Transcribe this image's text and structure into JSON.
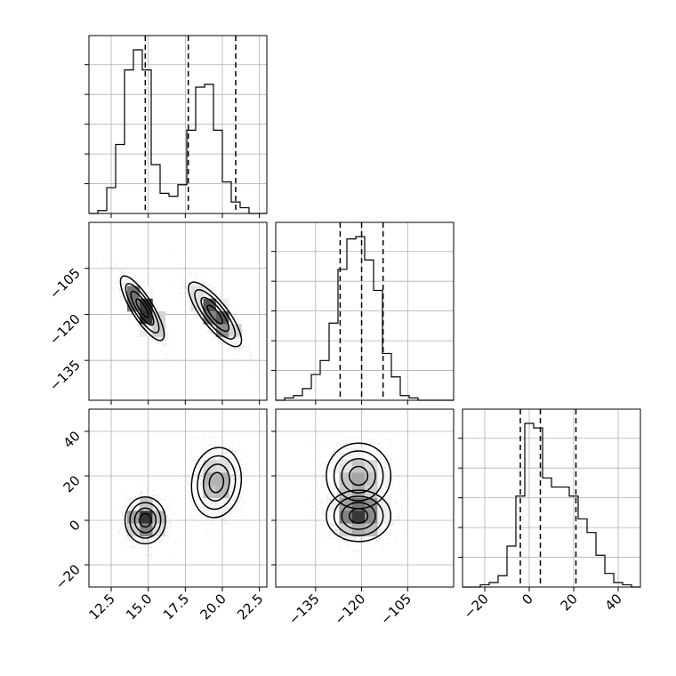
{
  "chart_data": {
    "type": "corner",
    "grid": true,
    "params": [
      {
        "range": [
          11.0,
          23.0
        ],
        "ticks": [
          12.5,
          15.0,
          17.5,
          20.0,
          22.5
        ],
        "tick_labels": [
          "12.5",
          "15.0",
          "17.5",
          "20.0",
          "22.5"
        ],
        "quantiles": [
          14.8,
          17.7,
          20.9
        ]
      },
      {
        "range": [
          -148,
          -90
        ],
        "ticks": [
          -135,
          -120,
          -105
        ],
        "tick_labels": [
          "−135",
          "−120",
          "−105"
        ],
        "quantiles": [
          -127,
          -120,
          -113
        ]
      },
      {
        "range": [
          -30,
          50
        ],
        "ticks": [
          -20,
          0,
          20,
          40
        ],
        "tick_labels": [
          "−20",
          "0",
          "20",
          "40"
        ],
        "quantiles": [
          -4,
          5,
          21
        ]
      }
    ],
    "histograms": [
      {
        "param": 0,
        "bin_edges": [
          11.0,
          11.6,
          12.2,
          12.8,
          13.4,
          14.0,
          14.6,
          15.2,
          15.8,
          16.4,
          17.0,
          17.6,
          18.2,
          18.8,
          19.4,
          20.0,
          20.6,
          21.2,
          21.8,
          22.4,
          23.0
        ],
        "counts": [
          0,
          1,
          9,
          24,
          50,
          57,
          50,
          17,
          7,
          6,
          10,
          29,
          44,
          45,
          29,
          11,
          4,
          2,
          0,
          0
        ]
      },
      {
        "param": 1,
        "bin_edges": [
          -148,
          -145.1,
          -142.2,
          -139.3,
          -136.4,
          -133.5,
          -130.6,
          -127.7,
          -124.8,
          -121.9,
          -119.0,
          -116.1,
          -113.2,
          -110.3,
          -107.4,
          -104.5,
          -101.6,
          -98.7,
          -95.8,
          -92.9,
          -90.0
        ],
        "counts": [
          0,
          1,
          2,
          5,
          11,
          17,
          33,
          56,
          69,
          70,
          60,
          47,
          20,
          10,
          2,
          1,
          0,
          0,
          0,
          0
        ]
      },
      {
        "param": 2,
        "bin_edges": [
          -30,
          -26,
          -22,
          -18,
          -14,
          -10,
          -6,
          -2,
          2,
          6,
          10,
          14,
          18,
          22,
          26,
          30,
          34,
          38,
          42,
          46,
          50
        ],
        "counts": [
          0,
          0,
          1,
          2,
          5,
          18,
          40,
          72,
          70,
          48,
          44,
          44,
          40,
          30,
          24,
          14,
          6,
          2,
          1,
          0
        ]
      }
    ],
    "scatter_panels": [
      {
        "x_param": 0,
        "y_param": 1,
        "clusters": [
          {
            "center": [
              14.6,
              -118
            ],
            "sd": [
              0.7,
              5.0
            ],
            "rho": -0.82,
            "n": 1200
          },
          {
            "center": [
              19.5,
              -120
            ],
            "sd": [
              0.85,
              5.0
            ],
            "rho": -0.8,
            "n": 1200
          }
        ]
      },
      {
        "x_param": 0,
        "y_param": 2,
        "clusters": [
          {
            "center": [
              14.8,
              0
            ],
            "sd": [
              0.65,
              5.0
            ],
            "rho": 0.0,
            "n": 1200
          },
          {
            "center": [
              19.6,
              17
            ],
            "sd": [
              0.8,
              7.5
            ],
            "rho": 0.1,
            "n": 1200
          }
        ]
      },
      {
        "x_param": 1,
        "y_param": 2,
        "clusters": [
          {
            "center": [
              -121,
              2
            ],
            "sd": [
              5.0,
              5.5
            ],
            "rho": 0.0,
            "n": 1400
          },
          {
            "center": [
              -121,
              20
            ],
            "sd": [
              5.0,
              7.0
            ],
            "rho": 0.0,
            "n": 1000
          }
        ]
      }
    ]
  }
}
